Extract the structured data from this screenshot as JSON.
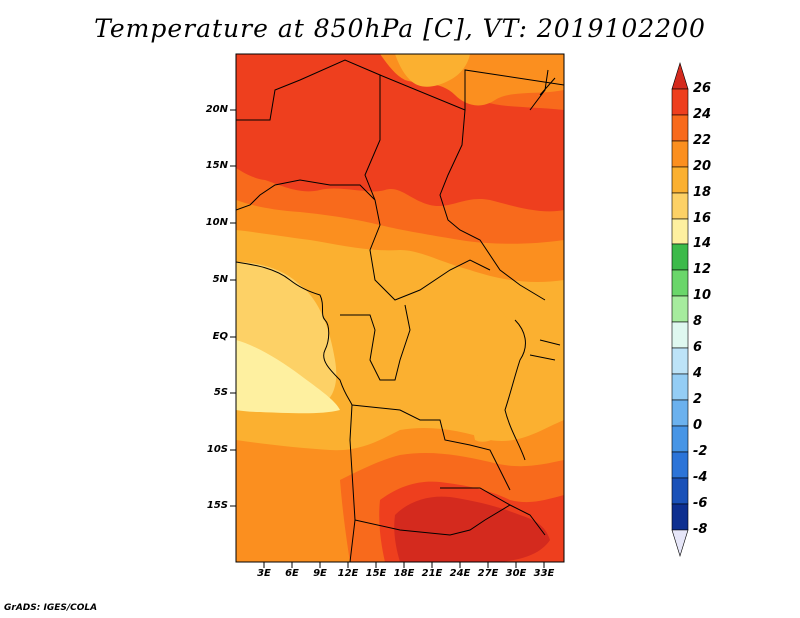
{
  "title": "Temperature at 850hPa [C], VT: 2019102200",
  "credit": "GrADS: IGES/COLA",
  "map": {
    "lat_labels": [
      "20N",
      "15N",
      "10N",
      "5N",
      "EQ",
      "5S",
      "10S",
      "15S"
    ],
    "lon_labels": [
      "3E",
      "6E",
      "9E",
      "12E",
      "15E",
      "18E",
      "21E",
      "24E",
      "27E",
      "30E",
      "33E"
    ]
  },
  "colorbar": {
    "labels": [
      "26",
      "24",
      "22",
      "20",
      "18",
      "16",
      "14",
      "12",
      "10",
      "8",
      "6",
      "4",
      "2",
      "0",
      "-2",
      "-4",
      "-6",
      "-8"
    ],
    "colors": {
      "above_26": "#d42a1e",
      "24_26": "#ee3f1e",
      "22_24": "#f86a1c",
      "20_22": "#fb8f1f",
      "18_20": "#fbb030",
      "16_18": "#fdd166",
      "14_16": "#fef0a0",
      "12_14": "#3cba4a",
      "10_12": "#6ad66a",
      "8_10": "#a6ec9e",
      "6_8": "#dff8f0",
      "4_6": "#bde3f8",
      "2_4": "#94cdf5",
      "0_2": "#6bb1ee",
      "m2_0": "#4795e6",
      "m4_m2": "#2c74d8",
      "m6_m4": "#1a51b8",
      "m8_m6": "#0d2f90",
      "below_m8": "#e6e6f8"
    }
  }
}
